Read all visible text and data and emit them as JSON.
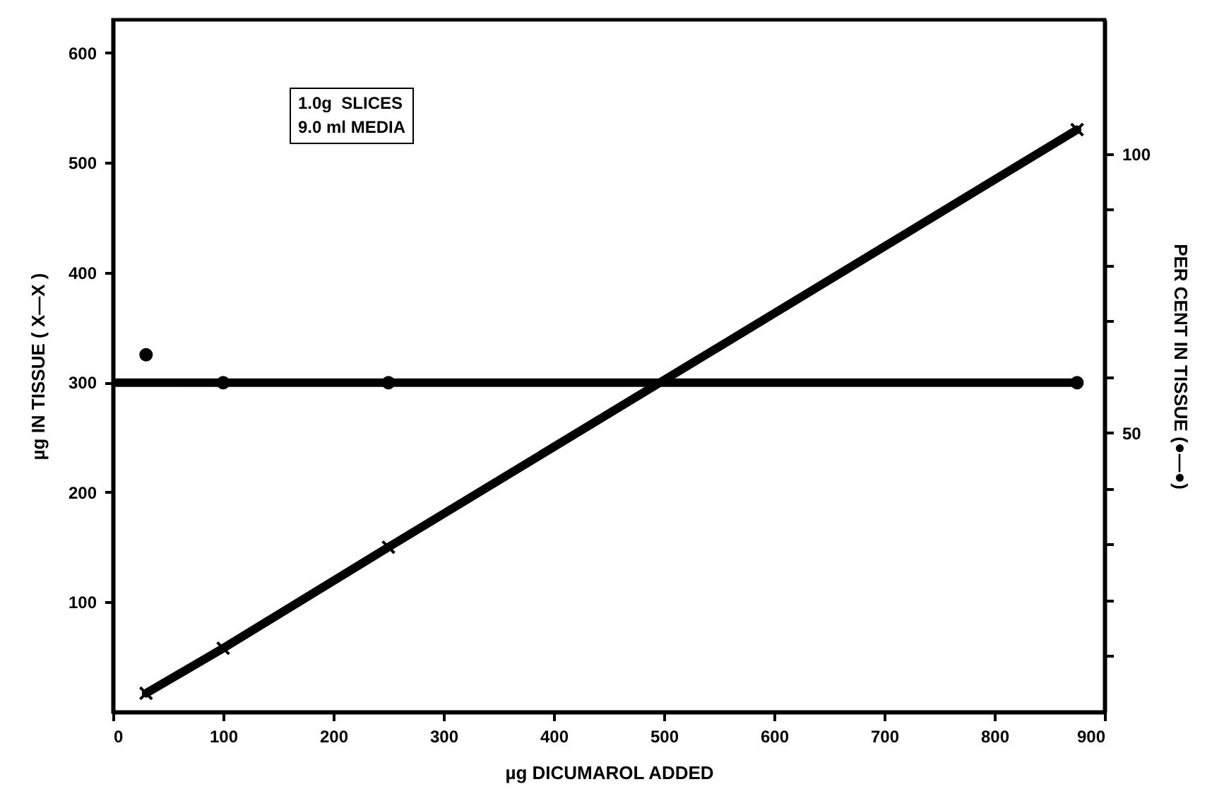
{
  "chart_data": {
    "type": "line",
    "xlabel": "µg DICUMAROL ADDED",
    "ylabel": "µg IN TISSUE ( X—X )",
    "y2label": "PER CENT IN TISSUE (●—●)",
    "annotations": [
      "1.0g  SLICES",
      "9.0 ml MEDIA"
    ],
    "xlim": [
      0,
      900
    ],
    "xticks": [
      0,
      100,
      200,
      300,
      400,
      500,
      600,
      700,
      800,
      900
    ],
    "ylim": [
      0,
      630
    ],
    "yticks": [
      100,
      200,
      300,
      400,
      500,
      600
    ],
    "y2lim": [
      0,
      124
    ],
    "y2ticks": [
      {
        "value": 10,
        "label": null
      },
      {
        "value": 20,
        "label": null
      },
      {
        "value": 30,
        "label": null
      },
      {
        "value": 40,
        "label": null
      },
      50,
      {
        "value": 60,
        "label": null
      },
      {
        "value": 70,
        "label": null
      },
      {
        "value": 80,
        "label": null
      },
      {
        "value": 90,
        "label": null
      },
      100
    ],
    "series": [
      {
        "marker": "cross",
        "color": "#000000",
        "x": [
          30,
          100,
          250,
          875
        ],
        "values": [
          17,
          58,
          150,
          530
        ]
      },
      {
        "type": "line",
        "marker": "none",
        "axis": "y2",
        "color": "#000000",
        "x": [
          3,
          875
        ],
        "values": [
          59,
          59
        ]
      },
      {
        "type": "scatter",
        "marker": "circle",
        "axis": "y2",
        "color": "#000000",
        "x": [
          30,
          100,
          250,
          875
        ],
        "values": [
          64,
          59,
          59,
          59
        ]
      }
    ]
  }
}
